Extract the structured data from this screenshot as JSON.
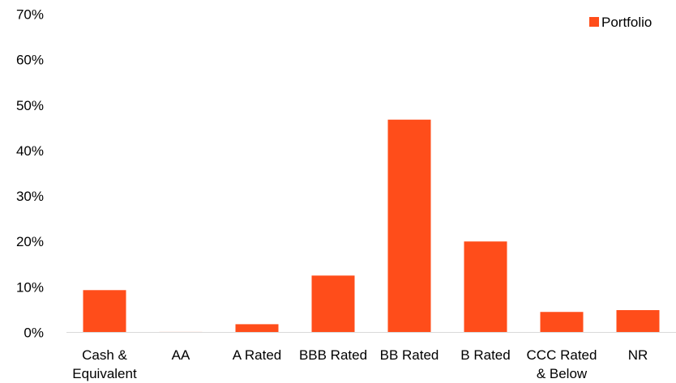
{
  "chart_data": {
    "type": "bar",
    "categories": [
      [
        "Cash &",
        "Equivalent"
      ],
      [
        "AA"
      ],
      [
        "A Rated"
      ],
      [
        "BBB Rated"
      ],
      [
        "BB Rated"
      ],
      [
        "B Rated"
      ],
      [
        "CCC Rated",
        "& Below"
      ],
      [
        "NR"
      ]
    ],
    "series": [
      {
        "name": "Portfolio",
        "color": "#ff4d1a",
        "values": [
          9.3,
          0.1,
          1.8,
          12.5,
          46.8,
          20.0,
          4.5,
          4.9
        ]
      }
    ],
    "ylim": [
      0,
      70
    ],
    "yticks": [
      "0%",
      "10%",
      "20%",
      "30%",
      "40%",
      "50%",
      "60%",
      "70%"
    ],
    "ytick_values": [
      0,
      10,
      20,
      30,
      40,
      50,
      60,
      70
    ],
    "grid": false,
    "legend_position": "top-right",
    "axis_color": "#d9d9d9"
  }
}
